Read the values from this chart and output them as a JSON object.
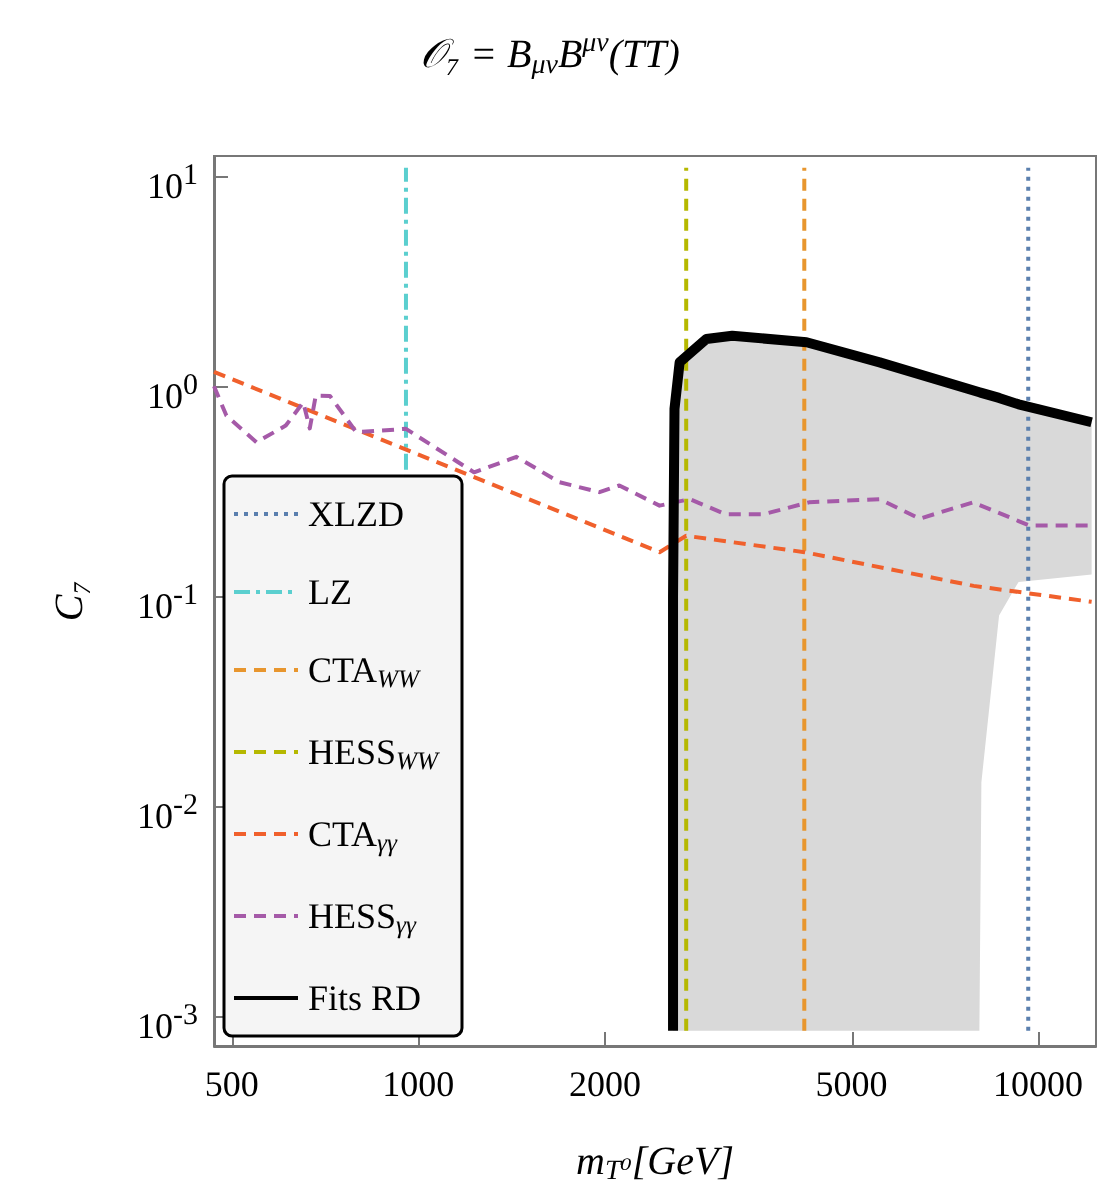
{
  "chart_data": {
    "type": "line",
    "title": "𝒪₇ = B$_{μν}$B$^{μν}$(TT)",
    "xlabel": "m$_{T⁰}$[GeV]",
    "ylabel": "C₇",
    "log": "xy",
    "xlim": [
      468,
      12400
    ],
    "ylim": [
      0.00072,
      12.5
    ],
    "xticks": [
      500,
      1000,
      2000,
      5000,
      10000
    ],
    "yticks": [
      {
        "value": 0.001,
        "label": "10$^{-3}$"
      },
      {
        "value": 0.01,
        "label": "10$^{-2}$"
      },
      {
        "value": 0.1,
        "label": "10$^{-1}$"
      },
      {
        "value": 1,
        "label": "10$^{0}$"
      },
      {
        "value": 10,
        "label": "10$^{1}$"
      }
    ],
    "legend": "bottom left",
    "marker": "none",
    "grid": false,
    "series": [
      {
        "name": "XLZD",
        "color": "#5a7fae",
        "line_style": "dotted",
        "x": [
          9640,
          9640
        ],
        "values": [
          0.00085,
          11
        ]
      },
      {
        "name": "LZ",
        "color": "#5bcfcf",
        "line_style": "dashdot",
        "x": [
          955,
          955
        ],
        "values": [
          0.4,
          11
        ]
      },
      {
        "name": "CTA$_{WW}$",
        "color": "#e8962e",
        "line_style": "dashed",
        "x": [
          4195,
          4195
        ],
        "values": [
          0.00085,
          11
        ]
      },
      {
        "name": "HESS$_{WW}$",
        "color": "#b5b800",
        "line_style": "dashed",
        "x": [
          2705,
          2705
        ],
        "values": [
          0.00085,
          11
        ]
      },
      {
        "name": "CTA$_{γγ}$",
        "color": "#f0602c",
        "line_style": "dashed",
        "x": [
          468,
          2450,
          2705,
          4200,
          7870,
          12200
        ],
        "values": [
          1.17,
          0.162,
          0.194,
          0.162,
          0.112,
          0.094
        ]
      },
      {
        "name": "HESS$_{γγ}$",
        "color": "#a55aa8",
        "line_style": "dashed",
        "x": [
          468,
          490,
          548,
          611,
          652,
          668,
          683,
          720,
          794,
          955,
          1230,
          1440,
          1690,
          1960,
          2110,
          2450,
          2740,
          3130,
          3610,
          4270,
          5550,
          6440,
          7850,
          9690,
          12200
        ],
        "values": [
          1.0,
          0.725,
          0.541,
          0.65,
          0.839,
          0.63,
          0.902,
          0.9,
          0.604,
          0.627,
          0.389,
          0.461,
          0.349,
          0.313,
          0.337,
          0.27,
          0.29,
          0.246,
          0.246,
          0.28,
          0.29,
          0.234,
          0.28,
          0.217,
          0.217
        ]
      },
      {
        "name": "Fits RD",
        "color": "#000000",
        "line_style": "solid",
        "x": [
          2576,
          2576,
          2590,
          2640,
          2915,
          3210,
          4230,
          5550,
          8040,
          8100,
          8650,
          9300,
          12200
        ],
        "values": [
          0.00085,
          0.1,
          0.78,
          1.3,
          1.68,
          1.74,
          1.62,
          1.3,
          0.936,
          0.93,
          0.88,
          0.82,
          0.674
        ],
        "lower": [
          0.00085,
          0.00085,
          0.00085,
          0.00085,
          0.00085,
          0.00085,
          0.00085,
          0.00085,
          0.00085,
          0.013,
          0.081,
          0.117,
          0.127
        ],
        "upper": [
          0.00085,
          0.1,
          0.78,
          1.3,
          1.68,
          1.74,
          1.62,
          1.3,
          0.936,
          0.93,
          0.88,
          0.82,
          0.674
        ]
      }
    ]
  }
}
